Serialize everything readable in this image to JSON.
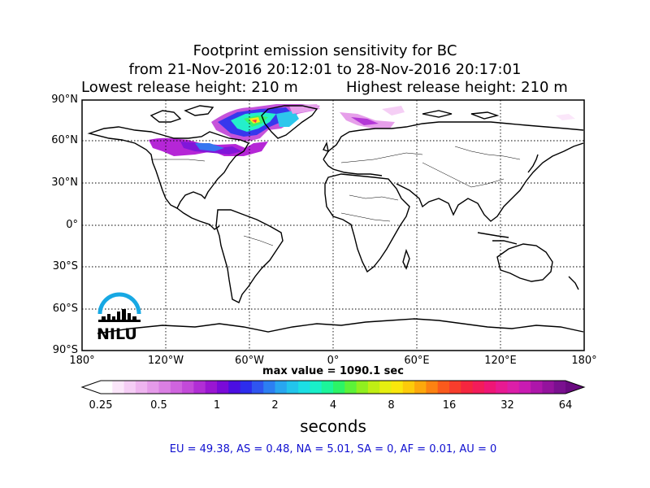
{
  "title": {
    "line1": "Footprint emission sensitivity for BC",
    "line2": "from 21-Nov-2016 20:12:01 to 28-Nov-2016 20:17:01",
    "line3_left": "Lowest release height: 210 m",
    "line3_right": "Highest release height: 210 m"
  },
  "axes": {
    "lat_labels": [
      "90°N",
      "60°N",
      "30°N",
      "0°",
      "30°S",
      "60°S",
      "90°S"
    ],
    "lon_labels": [
      "180°",
      "120°W",
      "60°W",
      "0°",
      "60°E",
      "120°E",
      "180°"
    ],
    "lat_values": [
      90,
      60,
      30,
      0,
      -30,
      -60,
      -90
    ],
    "lon_values": [
      -180,
      -120,
      -60,
      0,
      60,
      120,
      180
    ],
    "grid": "dotted"
  },
  "max_value": "max value = 1090.1 sec",
  "colorbar": {
    "tick_labels": [
      "0.25",
      "0.5",
      "1",
      "2",
      "4",
      "8",
      "16",
      "32",
      "64"
    ],
    "units": "seconds",
    "colors": [
      "#ffffff",
      "#fbe6fa",
      "#f5cdf5",
      "#eeb4ef",
      "#e59ae9",
      "#da7fe3",
      "#cf64de",
      "#c34ad9",
      "#b12ed5",
      "#9a16d2",
      "#7a0ad8",
      "#4b0ee2",
      "#2d2ded",
      "#2f55f0",
      "#2c7ff2",
      "#28a6f0",
      "#22c5ec",
      "#1cdfe4",
      "#19efc9",
      "#1cf59a",
      "#2cf466",
      "#5cf238",
      "#90ef1f",
      "#c0ee14",
      "#e6ef10",
      "#fae70c",
      "#fdcb0a",
      "#fda80c",
      "#fc8212",
      "#fa5a1c",
      "#f73d2c",
      "#f5263f",
      "#f31c5a",
      "#ef1676",
      "#e81a92",
      "#dc1ea8",
      "#c91bb2",
      "#ae16aa",
      "#94139d",
      "#7a108f"
    ]
  },
  "regions_text": "EU = 49.38,  AS = 0.48,  NA = 5.01,  SA = 0,  AF = 0.01,  AU = 0",
  "logo": {
    "text": "NILU",
    "arc_color": "#17a8e3"
  }
}
